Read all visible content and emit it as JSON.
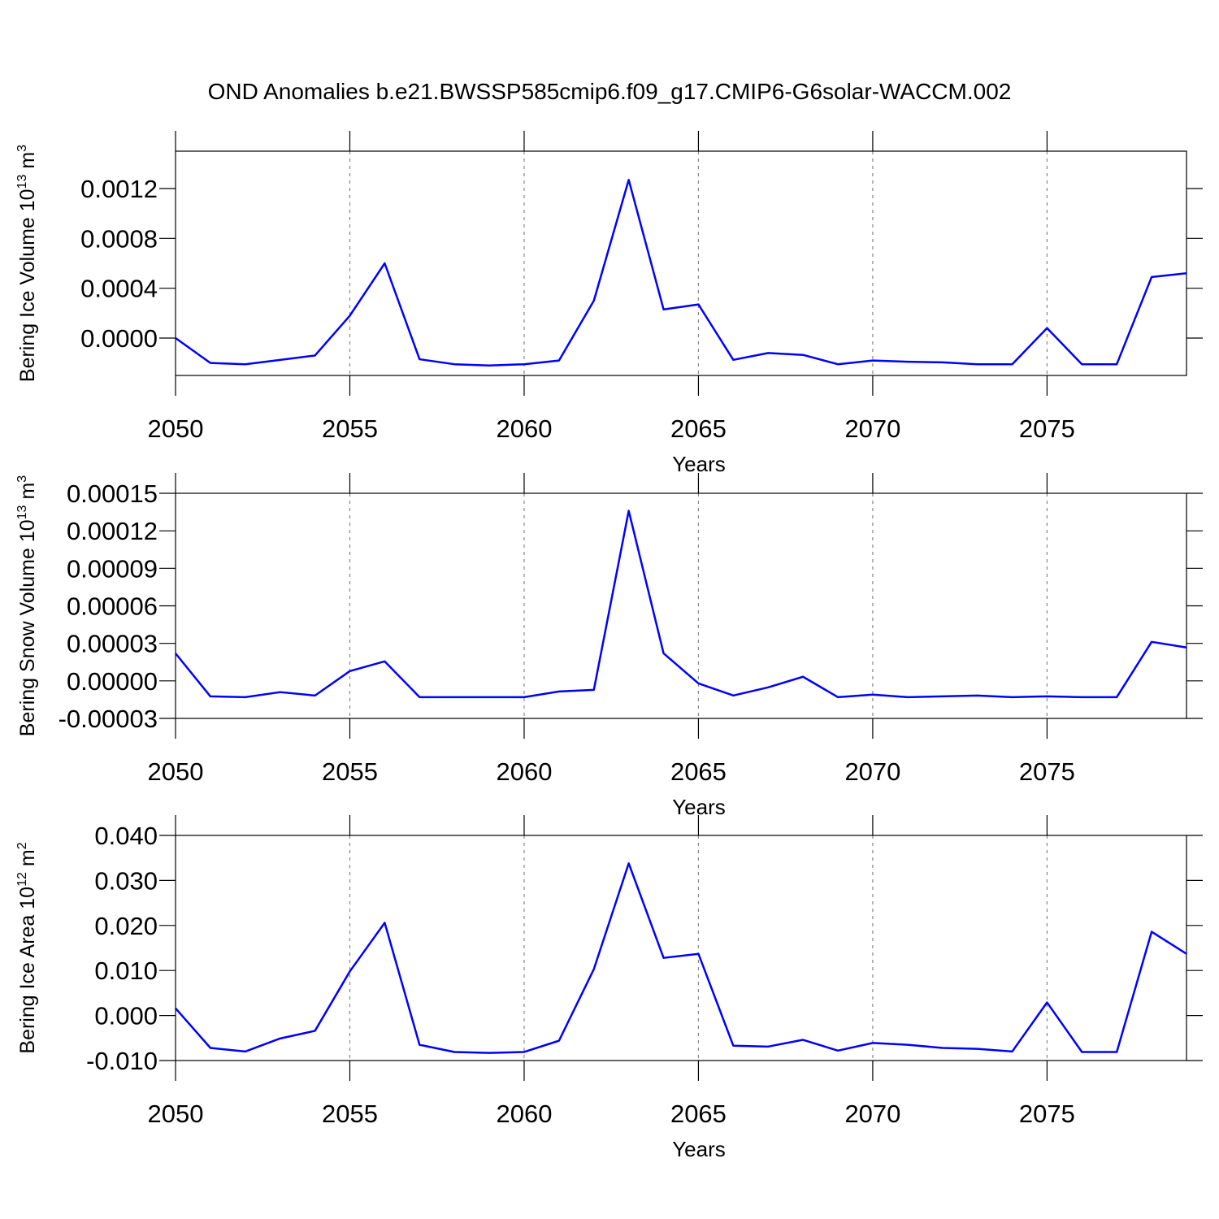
{
  "title": "OND Anomalies b.e21.BWSSP585cmip6.f09_g17.CMIP6-G6solar-WACCM.002",
  "chart_data": [
    {
      "type": "line",
      "x": [
        2050,
        2051,
        2052,
        2053,
        2054,
        2055,
        2056,
        2057,
        2058,
        2059,
        2060,
        2061,
        2062,
        2063,
        2064,
        2065,
        2066,
        2067,
        2068,
        2069,
        2070,
        2071,
        2072,
        2073,
        2074,
        2075,
        2076,
        2077,
        2078,
        2079
      ],
      "xlim": [
        2050,
        2079
      ],
      "xticks": [
        2050,
        2055,
        2060,
        2065,
        2070,
        2075
      ],
      "xlabel": "Years",
      "grid": "x",
      "ylabel": {
        "text": "Bering Ice Volume 10",
        "exponent": "13",
        "unit": "m",
        "unit_exponent": "3"
      },
      "ylim": [
        -0.0003,
        0.0015
      ],
      "yticks": [
        {
          "value": 0,
          "label": "0.0000"
        },
        {
          "value": 0.0004,
          "label": "0.0004"
        },
        {
          "value": 0.0008,
          "label": "0.0008"
        },
        {
          "value": 0.0012,
          "label": "0.0012"
        }
      ],
      "series": [
        {
          "color": "#0000ff",
          "values": [
            0,
            -0.0002,
            -0.00021,
            -0.000175,
            -0.00014,
            0.00018,
            0.0006,
            -0.00017,
            -0.00021,
            -0.00022,
            -0.00021,
            -0.00018,
            0.0003,
            0.00127,
            0.00023,
            0.00027,
            -0.000175,
            -0.00012,
            -0.000135,
            -0.00021,
            -0.00018,
            -0.00019,
            -0.000195,
            -0.00021,
            -0.00021,
            8e-05,
            -0.00021,
            -0.00021,
            0.00049,
            0.00052
          ]
        }
      ]
    },
    {
      "type": "line",
      "x": [
        2050,
        2051,
        2052,
        2053,
        2054,
        2055,
        2056,
        2057,
        2058,
        2059,
        2060,
        2061,
        2062,
        2063,
        2064,
        2065,
        2066,
        2067,
        2068,
        2069,
        2070,
        2071,
        2072,
        2073,
        2074,
        2075,
        2076,
        2077,
        2078,
        2079
      ],
      "xlim": [
        2050,
        2079
      ],
      "xticks": [
        2050,
        2055,
        2060,
        2065,
        2070,
        2075
      ],
      "xlabel": "Years",
      "grid": "x",
      "ylabel": {
        "text": "Bering Snow Volume 10",
        "exponent": "13",
        "unit": "m",
        "unit_exponent": "3"
      },
      "ylim": [
        -3e-05,
        0.00015
      ],
      "yticks": [
        {
          "value": -3e-05,
          "label": "-0.00003"
        },
        {
          "value": 0,
          "label": "0.00000"
        },
        {
          "value": 3e-05,
          "label": "0.00003"
        },
        {
          "value": 6e-05,
          "label": "0.00006"
        },
        {
          "value": 9e-05,
          "label": "0.00009"
        },
        {
          "value": 0.00012,
          "label": "0.00012"
        },
        {
          "value": 0.00015,
          "label": "0.00015"
        }
      ],
      "series": [
        {
          "color": "#0000ff",
          "values": [
            2.2e-05,
            -1.24e-05,
            -1.3e-05,
            -9e-06,
            -1.17e-05,
            7.8e-06,
            1.56e-05,
            -1.3e-05,
            -1.3e-05,
            -1.3e-05,
            -1.3e-05,
            -8.5e-06,
            -7.2e-06,
            0.000136,
            2.2e-05,
            -2e-06,
            -1.17e-05,
            -5.2e-06,
            3.3e-06,
            -1.3e-05,
            -1.1e-05,
            -1.3e-05,
            -1.24e-05,
            -1.17e-05,
            -1.3e-05,
            -1.24e-05,
            -1.3e-05,
            -1.3e-05,
            3.12e-05,
            2.67e-05
          ]
        }
      ]
    },
    {
      "type": "line",
      "x": [
        2050,
        2051,
        2052,
        2053,
        2054,
        2055,
        2056,
        2057,
        2058,
        2059,
        2060,
        2061,
        2062,
        2063,
        2064,
        2065,
        2066,
        2067,
        2068,
        2069,
        2070,
        2071,
        2072,
        2073,
        2074,
        2075,
        2076,
        2077,
        2078,
        2079
      ],
      "xlim": [
        2050,
        2079
      ],
      "xticks": [
        2050,
        2055,
        2060,
        2065,
        2070,
        2075
      ],
      "xlabel": "Years",
      "grid": "x",
      "ylabel": {
        "text": "Bering Ice Area 10",
        "exponent": "12",
        "unit": "m",
        "unit_exponent": "2"
      },
      "ylim": [
        -0.01,
        0.04
      ],
      "yticks": [
        {
          "value": -0.01,
          "label": "-0.010"
        },
        {
          "value": 0,
          "label": "0.000"
        },
        {
          "value": 0.01,
          "label": "0.010"
        },
        {
          "value": 0.02,
          "label": "0.020"
        },
        {
          "value": 0.03,
          "label": "0.030"
        },
        {
          "value": 0.04,
          "label": "0.040"
        }
      ],
      "series": [
        {
          "color": "#0000ff",
          "values": [
            0.0016,
            -0.0072,
            -0.008,
            -0.0051,
            -0.0034,
            0.0098,
            0.0206,
            -0.0065,
            -0.0081,
            -0.0083,
            -0.0081,
            -0.0056,
            0.0103,
            0.0338,
            0.0128,
            0.0137,
            -0.0067,
            -0.0069,
            -0.0054,
            -0.0078,
            -0.0061,
            -0.0065,
            -0.0072,
            -0.0074,
            -0.008,
            0.0029,
            -0.0081,
            -0.0081,
            0.0186,
            0.0137
          ]
        }
      ]
    }
  ]
}
